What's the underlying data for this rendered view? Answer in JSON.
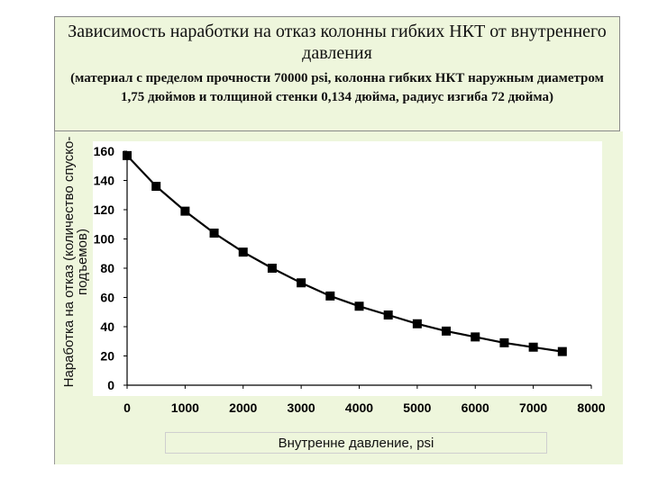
{
  "title": "Зависимость наработки на отказ колонны гибких НКТ от внутреннего давления",
  "subtitle": "(материал с пределом прочности 70000 psi, колонна гибких НКТ наружным диаметром 1,75 дюймов и толщиной стенки 0,134 дюйма, радиус изгиба 72 дюйма)",
  "chart_data": {
    "type": "line",
    "title": "Зависимость наработки на отказ колонны гибких НКТ от внутреннего давления",
    "subtitle": "(материал с пределом прочности 70000 psi, колонна гибких НКТ наружным диаметром 1,75 дюймов и толщиной стенки 0,134 дюйма, радиус изгиба 72 дюйма)",
    "xlabel": "Внутренне давление, psi",
    "ylabel": "Наработка на отказ (количество спуско-подъемов)",
    "xlim": [
      0,
      8000
    ],
    "ylim": [
      0,
      160
    ],
    "xticks": [
      "0",
      "1000",
      "2000",
      "3000",
      "4000",
      "5000",
      "6000",
      "7000",
      "8000"
    ],
    "yticks": [
      "0",
      "20",
      "40",
      "60",
      "80",
      "100",
      "120",
      "140",
      "160"
    ],
    "grid": false,
    "series": [
      {
        "x": [
          0,
          500,
          1000,
          1500,
          2000,
          2500,
          3000,
          3500,
          4000,
          4500,
          5000,
          5500,
          6000,
          6500,
          7000,
          7500
        ],
        "y": [
          157,
          136,
          119,
          104,
          91,
          80,
          70,
          61,
          54,
          48,
          42,
          37,
          33,
          29,
          26,
          23
        ],
        "color": "#000000",
        "marker": "square"
      }
    ]
  }
}
